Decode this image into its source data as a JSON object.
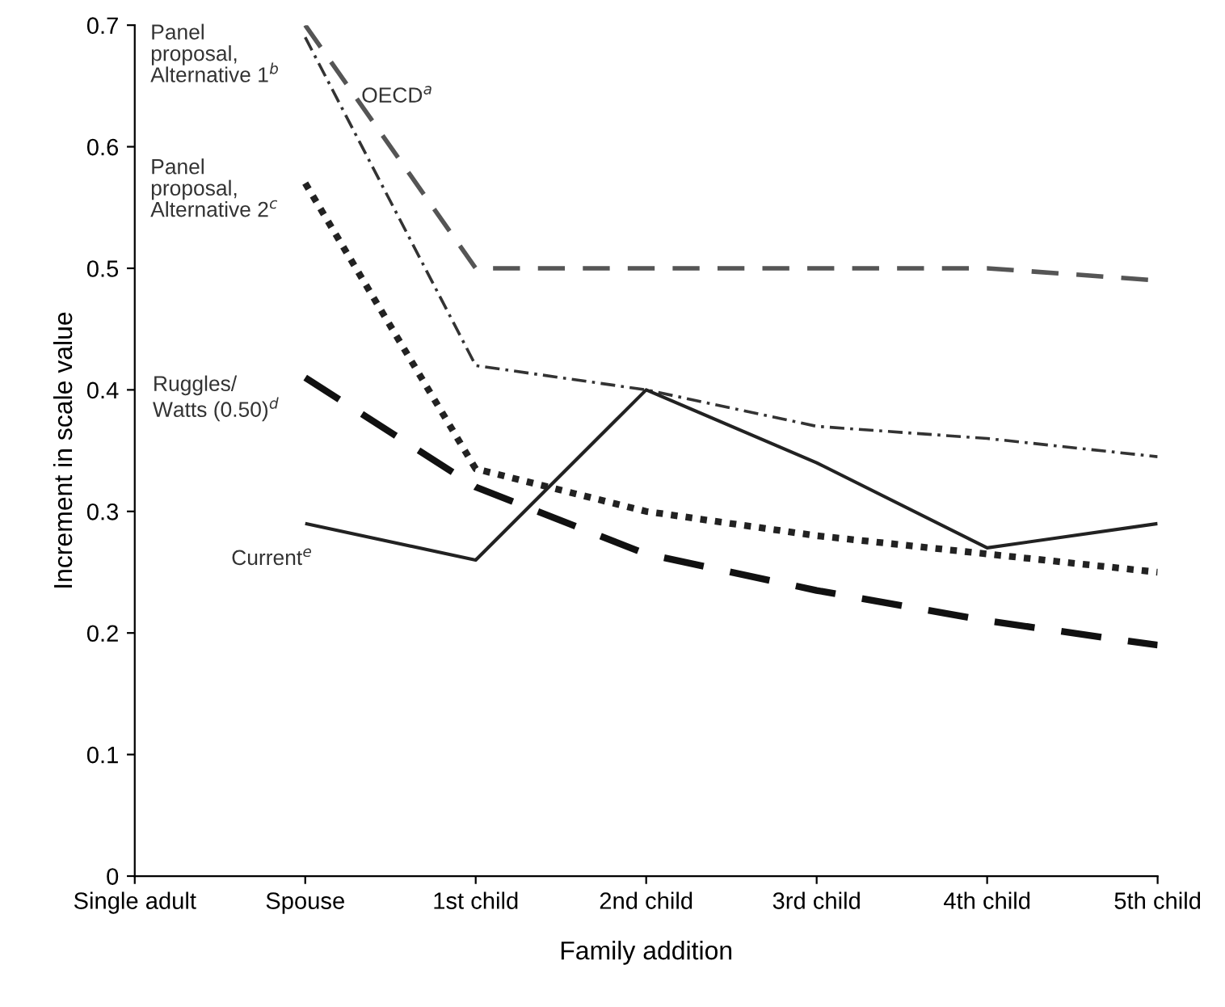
{
  "chart_data": {
    "type": "line",
    "xlabel": "Family addition",
    "ylabel": "Increment in scale value",
    "categories": [
      "Single adult",
      "Spouse",
      "1st child",
      "2nd child",
      "3rd child",
      "4th child",
      "5th child"
    ],
    "ylim": [
      0,
      0.7
    ],
    "yticks": [
      0,
      0.1,
      0.2,
      0.3,
      0.4,
      0.5,
      0.6,
      0.7
    ],
    "grid": false,
    "legend": false,
    "marker": "none",
    "series": [
      {
        "name": "OECD$^{a}$",
        "color": "#555555",
        "line_style": "dashed",
        "values": [
          null,
          0.7,
          0.5,
          0.5,
          0.5,
          0.5,
          0.49
        ]
      },
      {
        "name": "Panel\nproposal,\nAlternative 1$^{b}$",
        "color": "#333333",
        "line_style": "dashdot",
        "values": [
          null,
          0.69,
          0.42,
          0.4,
          0.37,
          0.36,
          0.345
        ]
      },
      {
        "name": "Panel\nproposal,\nAlternative 2$^{c}$",
        "color": "#222222",
        "line_style": "dotted",
        "values": [
          null,
          0.57,
          0.335,
          0.3,
          0.28,
          0.265,
          0.25
        ]
      },
      {
        "name": "Ruggles/\nWatts (0.50)$^{d}$",
        "color": "#111111",
        "line_style": "dashed",
        "values": [
          null,
          0.41,
          0.32,
          0.265,
          0.235,
          0.21,
          0.19
        ]
      },
      {
        "name": "Current$^{e}$",
        "color": "#222222",
        "line_style": "solid",
        "values": [
          null,
          0.29,
          0.26,
          0.4,
          0.34,
          0.27,
          0.29
        ]
      }
    ]
  }
}
